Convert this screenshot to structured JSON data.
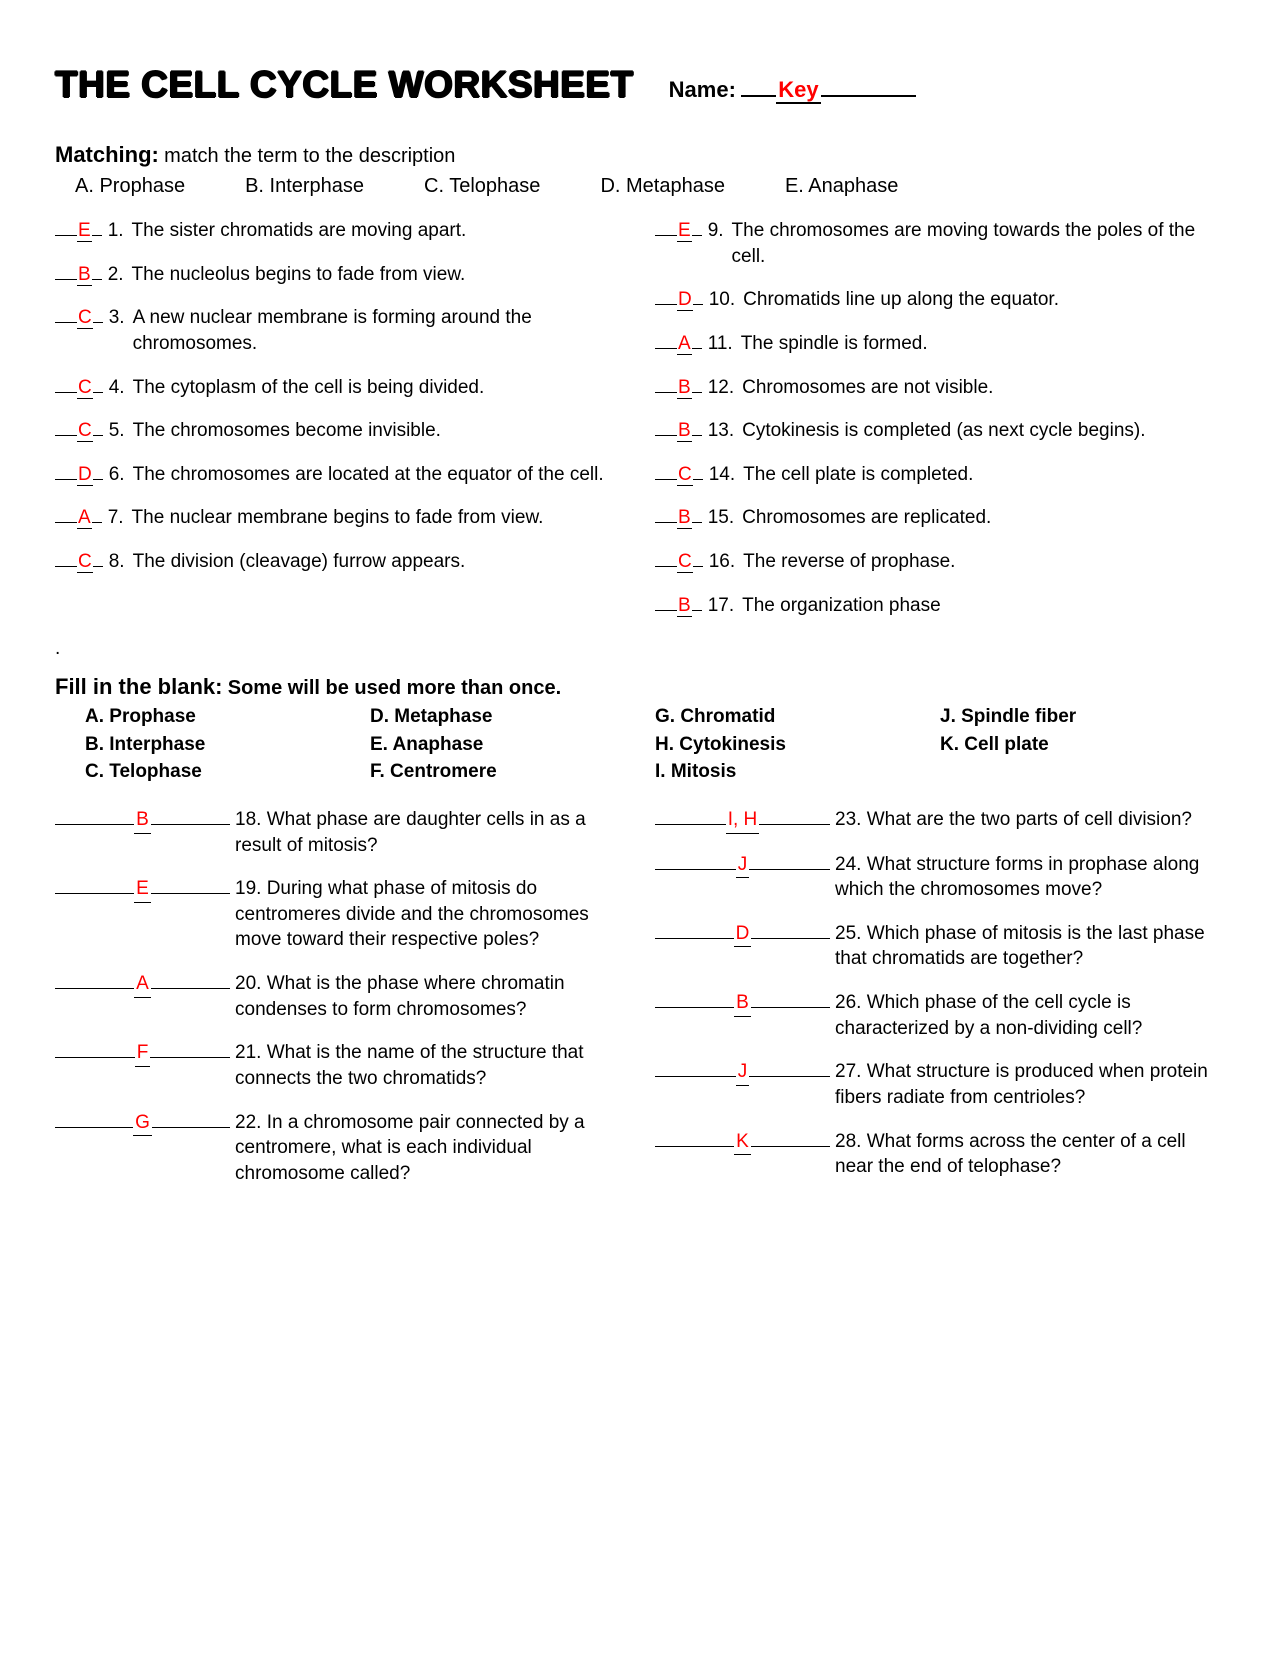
{
  "title": "THE CELL CYCLE WORKSHEET",
  "name_label": "Name:",
  "name_value": "Key",
  "matching": {
    "heading": "Matching:",
    "subheading": "match the term to the description",
    "options": [
      "A. Prophase",
      "B. Interphase",
      "C. Telophase",
      "D. Metaphase",
      "E. Anaphase"
    ],
    "left": [
      {
        "ans": "E",
        "num": "1.",
        "text": "The sister chromatids are moving apart."
      },
      {
        "ans": "B",
        "num": "2.",
        "text": "The nucleolus begins to fade from view."
      },
      {
        "ans": "C",
        "num": "3.",
        "text": "A new nuclear membrane is forming around the chromosomes."
      },
      {
        "ans": "C",
        "num": "4.",
        "text": "The cytoplasm of the cell is being divided.",
        "indent": true
      },
      {
        "ans": "C",
        "num": "5.",
        "text": "The chromosomes become invisible."
      },
      {
        "ans": "D",
        "num": "6.",
        "text": "The chromosomes are located at the equator of the cell.",
        "indent": true
      },
      {
        "ans": "A",
        "num": "7.",
        "text": "The nuclear membrane begins to fade from view.",
        "indent": true
      },
      {
        "ans": "C",
        "num": "8.",
        "text": "The division (cleavage) furrow appears."
      }
    ],
    "right": [
      {
        "ans": "E",
        "num": "9.",
        "text": "The chromosomes are moving towards the poles of the cell.",
        "indent": true
      },
      {
        "ans": "D",
        "num": "10.",
        "text": "Chromatids line up along the equator."
      },
      {
        "ans": "A",
        "num": "11.",
        "text": "The spindle is formed."
      },
      {
        "ans": "B",
        "num": "12.",
        "text": "Chromosomes are not visible."
      },
      {
        "ans": "B",
        "num": "13.",
        "text": "Cytokinesis is completed (as next cycle begins).",
        "indent": true
      },
      {
        "ans": "C",
        "num": "14.",
        "text": "The cell plate is completed."
      },
      {
        "ans": "B",
        "num": "15.",
        "text": "Chromosomes are replicated."
      },
      {
        "ans": "C",
        "num": "16.",
        "text": "The reverse of prophase."
      },
      {
        "ans": "B",
        "num": "17.",
        "text": "The organization phase"
      }
    ]
  },
  "fillblank": {
    "heading": "Fill in the blank:",
    "subheading": "Some will be used more than once.",
    "options": {
      "col1": [
        "A. Prophase",
        "B. Interphase",
        "C. Telophase"
      ],
      "col2": [
        "D. Metaphase",
        "E. Anaphase",
        "F. Centromere"
      ],
      "col3": [
        "G.  Chromatid",
        "H. Cytokinesis",
        " I. Mitosis"
      ],
      "col4": [
        "J. Spindle fiber",
        "K. Cell plate"
      ]
    },
    "left": [
      {
        "ans": "B",
        "num": "18.",
        "text": "What phase are daughter cells in as a result of mitosis?"
      },
      {
        "ans": "E",
        "num": "19.",
        "text": "During what phase of mitosis do centromeres divide and the chromosomes move toward their respective poles?"
      },
      {
        "ans": "A",
        "num": "20.",
        "text": "What is the phase where chromatin condenses to form chromosomes?"
      },
      {
        "ans": "F",
        "num": "21.",
        "text": "What is the name of the structure that connects the two chromatids?"
      },
      {
        "ans": "G",
        "num": "22.",
        "text": "In a chromosome pair connected by a centromere, what is each individual  chromosome called?"
      }
    ],
    "right": [
      {
        "ans": "I, H",
        "num": "23.",
        "text": "What are the two parts of cell division?"
      },
      {
        "ans": "J",
        "num": "24.",
        "text": "What structure forms in prophase along which the chromosomes move?"
      },
      {
        "ans": "D",
        "num": "25.",
        "text": "Which phase of mitosis is the last phase that chromatids are together?"
      },
      {
        "ans": "B",
        "num": "26.",
        "text": "Which phase of the cell cycle is characterized by a non-dividing cell?"
      },
      {
        "ans": "J",
        "num": "27.",
        "text": "What structure is produced when protein fibers radiate from centrioles?"
      },
      {
        "ans": "K",
        "num": "28.",
        "text": "What forms across the center of a cell near the end of telophase?"
      }
    ]
  }
}
